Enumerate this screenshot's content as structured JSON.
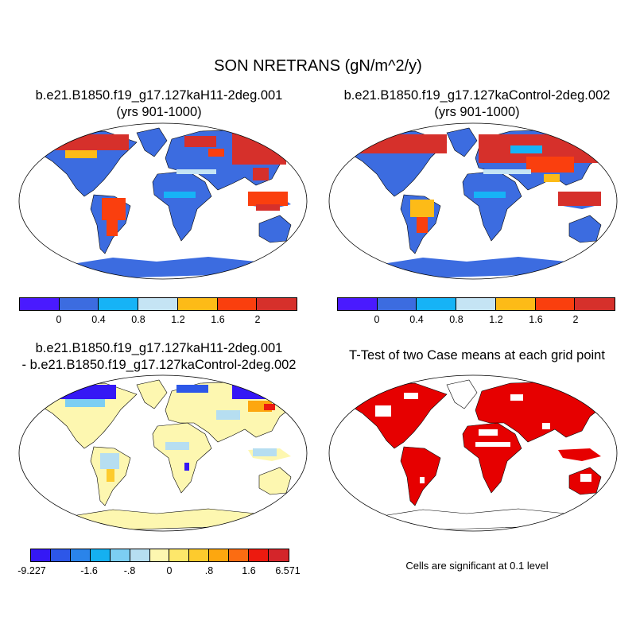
{
  "title": "SON NRETRANS (gN/m^2/y)",
  "panels": [
    {
      "line1": "b.e21.B1850.f19_g17.127kaH11-2deg.001",
      "line2": "(yrs 901-1000)"
    },
    {
      "line1": "b.e21.B1850.f19_g17.127kaControl-2deg.002",
      "line2": "(yrs 901-1000)"
    },
    {
      "line1": "b.e21.B1850.f19_g17.127kaH11-2deg.001",
      "line2": "- b.e21.B1850.f19_g17.127kaControl-2deg.002"
    },
    {
      "line1": "T-Test of two Case means at each grid point",
      "line2": ""
    }
  ],
  "colorbar_abs": {
    "colors": [
      "#4a1aff",
      "#3c6ce0",
      "#16b3f6",
      "#c5e4f4",
      "#fdbb17",
      "#fa3f0e",
      "#d6302b"
    ],
    "labels": [
      "0",
      "0.4",
      "0.8",
      "1.2",
      "1.6",
      "2"
    ]
  },
  "colorbar_diff": {
    "colors": [
      "#3518f5",
      "#2d57e8",
      "#2a84ea",
      "#15b0f0",
      "#7ccef3",
      "#b6def1",
      "#fdf7b0",
      "#fde76a",
      "#fdcb2d",
      "#fda70f",
      "#fb6c12",
      "#ec1a0f",
      "#d4252a"
    ],
    "labels": [
      "-9.227",
      "-1.6",
      "-.8",
      "0",
      ".8",
      "1.6",
      "6.571"
    ]
  },
  "significance_note": "Cells are significant at 0.1 level",
  "significance_color": "#e60000"
}
